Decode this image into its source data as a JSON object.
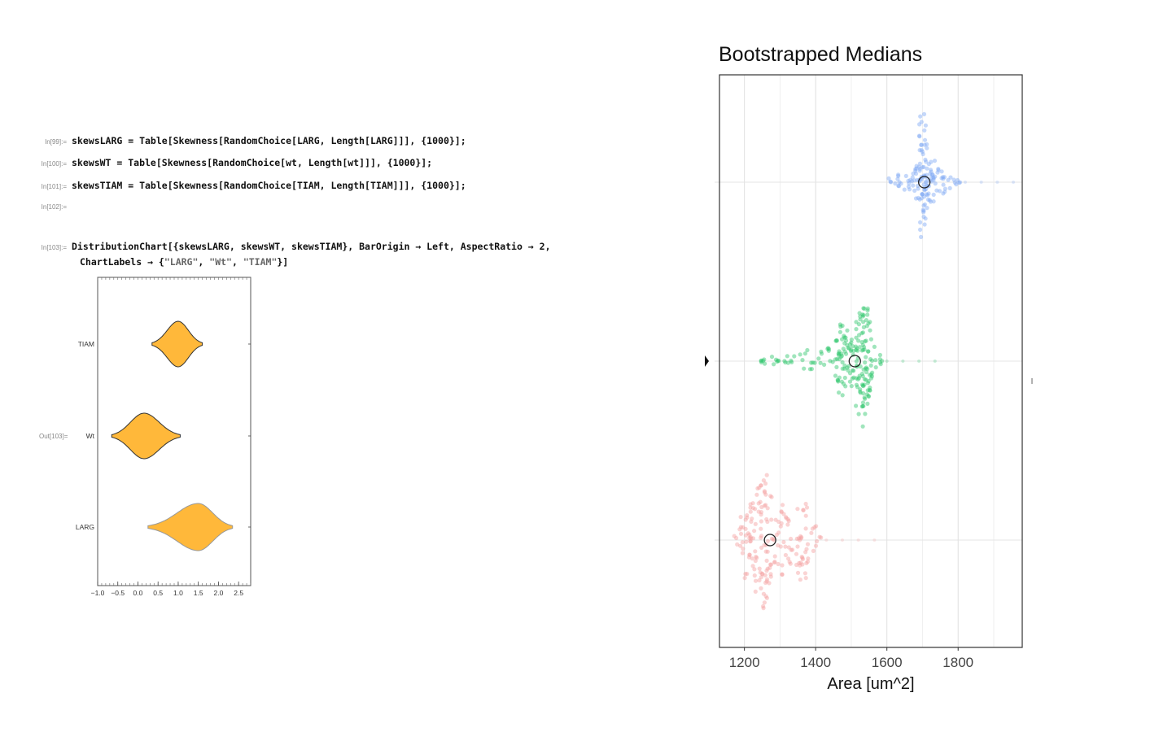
{
  "notebook": {
    "cells": [
      {
        "label": "In[99]:=",
        "code": "skewsLARG = Table[Skewness[RandomChoice[LARG, Length[LARG]]], {1000}];"
      },
      {
        "label": "In[100]:=",
        "code": "skewsWT = Table[Skewness[RandomChoice[wt, Length[wt]]], {1000}];"
      },
      {
        "label": "In[101]:=",
        "code": "skewsTIAM = Table[Skewness[RandomChoice[TIAM, Length[TIAM]]], {1000}];"
      },
      {
        "label": "In[102]:=",
        "code": ""
      }
    ],
    "cell103": {
      "label": "In[103]:=",
      "line1": "DistributionChart[{skewsLARG, skewsWT, skewsTIAM}, BarOrigin → Left, AspectRatio → 2,",
      "line2_prefix": "ChartLabels → {",
      "s1": "\"LARG\"",
      "s2": "\"Wt\"",
      "s3": "\"TIAM\"",
      "sep": ", ",
      "line2_suffix": "}]"
    },
    "out_label": "Out[103]="
  },
  "violin_chart": {
    "type": "violin",
    "orientation": "horizontal",
    "fill_color": "#FFB83A",
    "categories": [
      "TIAM",
      "Wt",
      "LARG"
    ],
    "x_ticks": [
      "-1.0",
      "-0.5",
      "0.0",
      "0.5",
      "1.0",
      "1.5",
      "2.0",
      "2.5"
    ],
    "xlim": [
      -1.0,
      2.8
    ],
    "series": [
      {
        "category": "TIAM",
        "center": 1.0,
        "min": 0.35,
        "max": 1.6
      },
      {
        "category": "Wt",
        "center": 0.15,
        "min": -0.65,
        "max": 1.05
      },
      {
        "category": "LARG",
        "center": 1.5,
        "min": 0.25,
        "max": 2.35
      }
    ]
  },
  "chart_data": {
    "type": "scatter",
    "title": "Bootstrapped Medians",
    "xlabel": "Area [um^2]",
    "ylabel": "",
    "x_ticks": [
      "1200",
      "1400",
      "1600",
      "1800"
    ],
    "xlim": [
      1130,
      1980
    ],
    "grid": true,
    "series": [
      {
        "color": "#7FA8F5",
        "median": 1705,
        "min": 1610,
        "max": 1800
      },
      {
        "color": "#2CC56A",
        "median": 1510,
        "min": 1240,
        "max": 1580
      },
      {
        "color": "#F5A0A0",
        "median": 1272,
        "min": 1175,
        "max": 1410
      }
    ]
  }
}
